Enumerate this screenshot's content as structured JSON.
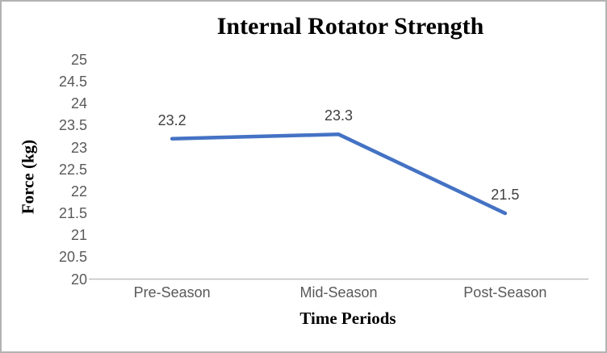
{
  "chart_data": {
    "type": "line",
    "title": "Internal Rotator Strength",
    "xlabel": "Time Periods",
    "ylabel": "Force (kg)",
    "categories": [
      "Pre-Season",
      "Mid-Season",
      "Post-Season"
    ],
    "series": [
      {
        "name": "Internal Rotator Strength",
        "values": [
          23.2,
          23.3,
          21.5
        ],
        "color": "#4472C4"
      }
    ],
    "data_labels": [
      "23.2",
      "23.3",
      "21.5"
    ],
    "ylim": [
      20,
      25
    ],
    "y_tick_step": 0.5,
    "y_ticks": [
      20,
      20.5,
      21,
      21.5,
      22,
      22.5,
      23,
      23.5,
      24,
      24.5,
      25
    ],
    "grid": false,
    "legend": "none",
    "colors": {
      "line": "#4472C4",
      "axis_line": "#BFBFBF",
      "tick_labels": "#595959",
      "data_labels": "#404040",
      "title_text": "#000000",
      "border": "#B3B3B3",
      "background": "#FFFFFF"
    }
  }
}
